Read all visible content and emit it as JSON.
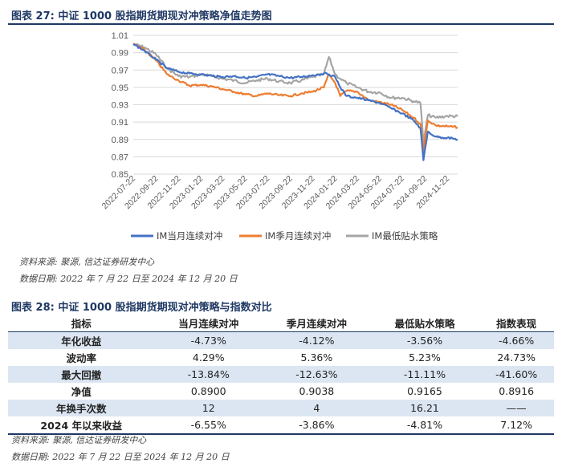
{
  "figure1": {
    "title": "图表 27:  中证 1000 股指期货期现对冲策略净值走势图",
    "source": "资料来源:  聚源,  信达证券研发中心",
    "date_range": "数据日期:  2022 年 7 月 22 日至 2024 年 12 月 20 日"
  },
  "figure2": {
    "title": "图表 28:  中证 1000 股指期货期现对冲策略与指数对比",
    "source": "资料来源:  聚源,  信达证券研发中心",
    "date_range": "数据日期:  2022 年 7 月 22 日至 2024 年 12 月 20 日"
  },
  "chart_data": {
    "type": "line",
    "x_ticks": [
      "2022-07-22",
      "2022-09-22",
      "2022-11-22",
      "2023-01-22",
      "2023-03-22",
      "2023-05-22",
      "2023-07-22",
      "2023-09-22",
      "2023-11-22",
      "2024-01-22",
      "2024-03-22",
      "2024-05-22",
      "2024-07-22",
      "2024-09-22",
      "2024-11-22"
    ],
    "x": [
      "2022-07-22",
      "2022-08-22",
      "2022-09-22",
      "2022-10-22",
      "2022-11-22",
      "2022-12-22",
      "2023-01-22",
      "2023-02-22",
      "2023-03-22",
      "2023-04-22",
      "2023-05-22",
      "2023-06-22",
      "2023-07-22",
      "2023-08-22",
      "2023-09-22",
      "2023-10-22",
      "2023-11-22",
      "2023-12-22",
      "2024-01-05",
      "2024-01-22",
      "2024-02-05",
      "2024-02-22",
      "2024-03-22",
      "2024-04-22",
      "2024-05-22",
      "2024-06-22",
      "2024-07-22",
      "2024-08-22",
      "2024-09-10",
      "2024-09-18",
      "2024-09-30",
      "2024-10-22",
      "2024-11-22",
      "2024-12-20"
    ],
    "ylim": [
      0.85,
      1.01
    ],
    "y_ticks": [
      "0.85",
      "0.87",
      "0.89",
      "0.91",
      "0.93",
      "0.95",
      "0.97",
      "0.99",
      "1.01"
    ],
    "grid": "horizontal",
    "legend_position": "bottom",
    "series": [
      {
        "name": "IM当月连续对冲",
        "color": "#4472c4",
        "values": [
          1.0,
          0.992,
          0.982,
          0.972,
          0.968,
          0.966,
          0.965,
          0.963,
          0.962,
          0.963,
          0.961,
          0.962,
          0.965,
          0.963,
          0.961,
          0.962,
          0.964,
          0.966,
          0.965,
          0.962,
          0.95,
          0.94,
          0.938,
          0.935,
          0.932,
          0.926,
          0.92,
          0.912,
          0.903,
          0.866,
          0.899,
          0.893,
          0.892,
          0.89
        ]
      },
      {
        "name": "IM季月连续对冲",
        "color": "#ed7d31",
        "values": [
          1.0,
          0.993,
          0.981,
          0.965,
          0.958,
          0.952,
          0.953,
          0.951,
          0.948,
          0.945,
          0.942,
          0.94,
          0.943,
          0.941,
          0.94,
          0.943,
          0.945,
          0.95,
          0.965,
          0.955,
          0.94,
          0.946,
          0.945,
          0.935,
          0.933,
          0.93,
          0.924,
          0.915,
          0.908,
          0.876,
          0.912,
          0.906,
          0.905,
          0.904
        ]
      },
      {
        "name": "IM最低贴水策略",
        "color": "#a5a5a5",
        "values": [
          1.0,
          0.996,
          0.988,
          0.972,
          0.963,
          0.962,
          0.965,
          0.963,
          0.96,
          0.958,
          0.955,
          0.958,
          0.96,
          0.957,
          0.955,
          0.958,
          0.962,
          0.965,
          0.985,
          0.965,
          0.96,
          0.955,
          0.95,
          0.945,
          0.944,
          0.938,
          0.938,
          0.934,
          0.932,
          0.886,
          0.918,
          0.915,
          0.917,
          0.9165
        ]
      }
    ]
  },
  "comparison_table": {
    "headers": [
      "指标",
      "当月连续对冲",
      "季月连续对冲",
      "最低贴水策略",
      "指数表现"
    ],
    "rows": [
      {
        "label": "年化收益",
        "cells": [
          "-4.73%",
          "-4.12%",
          "-3.56%",
          "-4.66%"
        ]
      },
      {
        "label": "波动率",
        "cells": [
          "4.29%",
          "5.36%",
          "5.23%",
          "24.73%"
        ]
      },
      {
        "label": "最大回撤",
        "cells": [
          "-13.84%",
          "-12.63%",
          "-11.11%",
          "-41.60%"
        ]
      },
      {
        "label": "净值",
        "cells": [
          "0.8900",
          "0.9038",
          "0.9165",
          "0.8916"
        ]
      },
      {
        "label": "年换手次数",
        "cells": [
          "12",
          "4",
          "16.21",
          "——"
        ]
      },
      {
        "label": "2024 年以来收益",
        "cells": [
          "-6.55%",
          "-3.86%",
          "-4.81%",
          "7.12%"
        ]
      }
    ]
  }
}
